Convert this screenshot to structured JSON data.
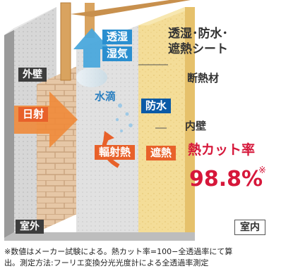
{
  "labels": {
    "moisture_vapor_1": "透湿",
    "moisture_vapor_2": "湿気",
    "sheet_line1": "透湿･防水･",
    "sheet_line2": "遮熱シート",
    "insulation": "断熱材",
    "exterior_wall": "外壁",
    "water_drops": "水滴",
    "waterproof": "防水",
    "solar_radiation": "日射",
    "interior_wall": "内壁",
    "radiant_heat": "輻射熱",
    "heat_shield": "遮熱",
    "cut_rate_label": "熱カット率",
    "cut_rate_value": "98.8%",
    "asterisk": "※",
    "outdoor": "室外",
    "indoor": "室内"
  },
  "footnote": {
    "line1": "※数値はメーカー試験による。熱カット率=100−全透過率にて算",
    "line2": "出。測定方法:フーリエ変換分光光度計による全透過率測定"
  },
  "colors": {
    "orange_accent": "#e8612a",
    "blue_accent": "#2a8fd0",
    "red_value": "#d6173a",
    "insulation_yellow": "#f2d98c",
    "wood": "#d9a35f"
  }
}
